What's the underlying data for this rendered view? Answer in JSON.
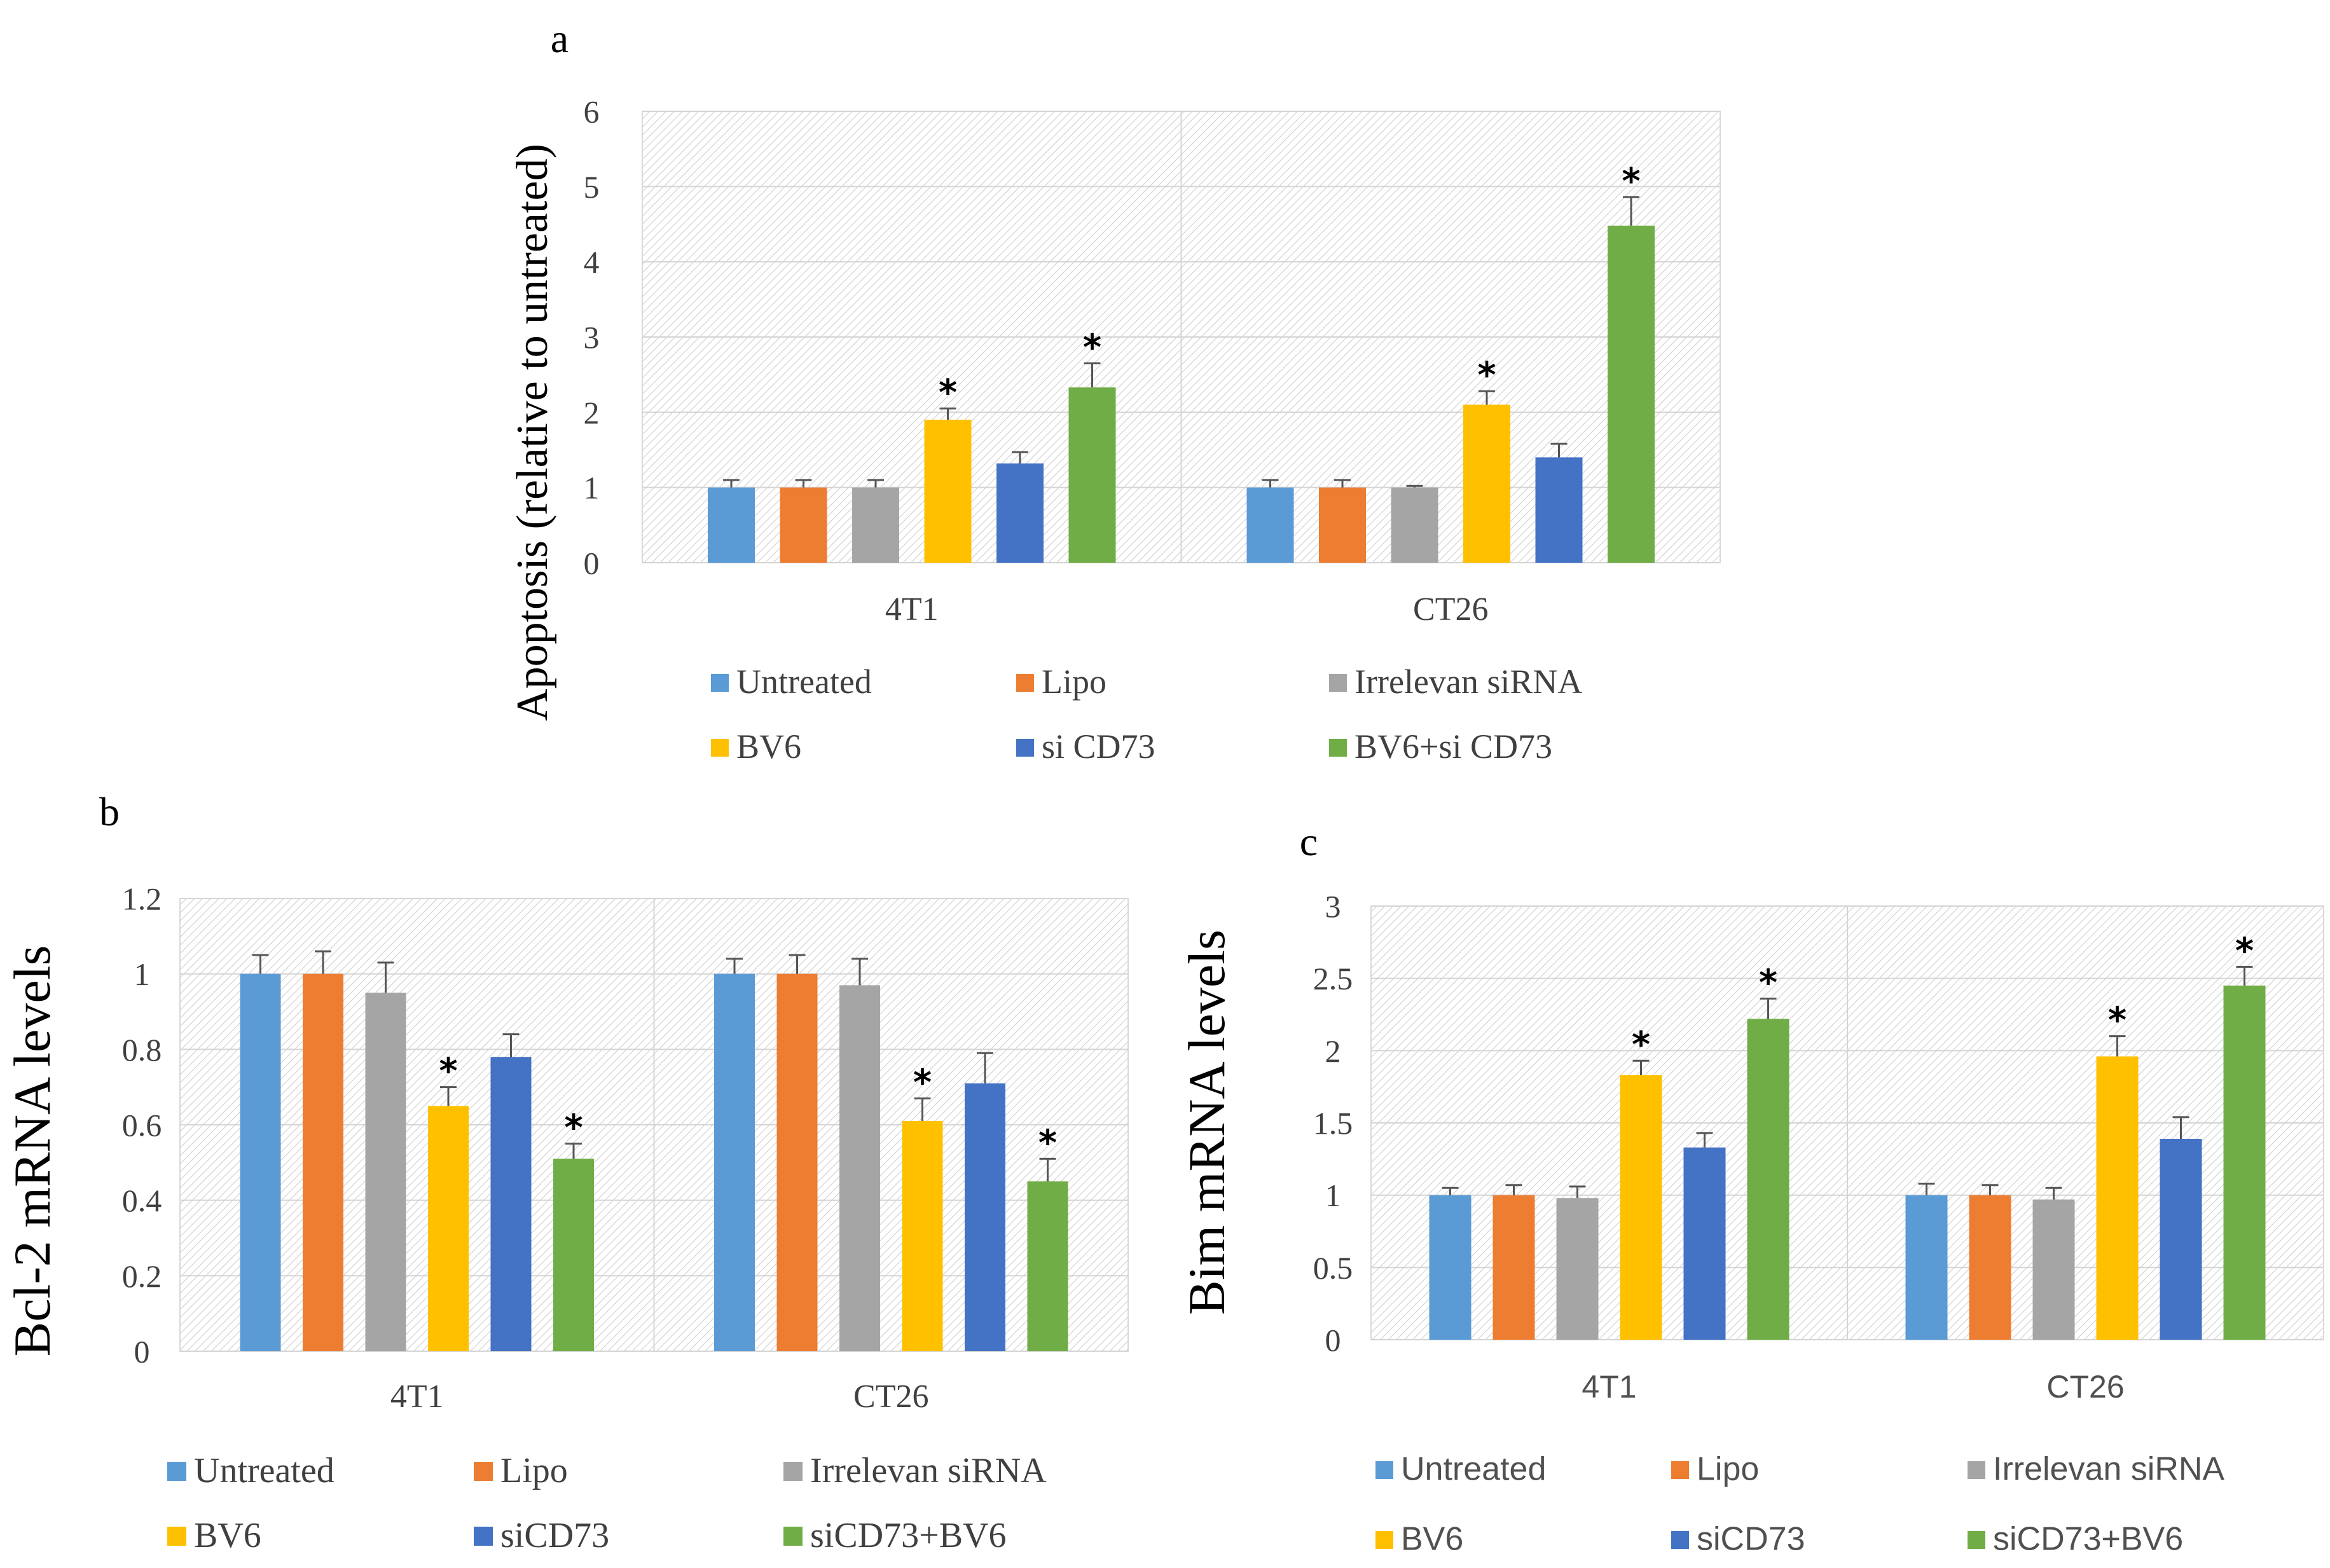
{
  "chart_data": [
    {
      "panel": "a",
      "type": "bar",
      "title": "",
      "xlabel": "",
      "ylabel": "Apoptosis (relative to untreated)",
      "ylim": [
        0,
        6
      ],
      "yticks": [
        "0",
        "1",
        "2",
        "3",
        "4",
        "5",
        "6"
      ],
      "categories": [
        "4T1",
        "CT26"
      ],
      "legend_position": "bottom",
      "series": [
        {
          "name": "Untreated",
          "color": "#5B9BD5",
          "values": [
            1.0,
            1.0
          ],
          "errors": [
            0.1,
            0.1
          ],
          "significant": [
            false,
            false
          ]
        },
        {
          "name": "Lipo",
          "color": "#ED7D31",
          "values": [
            1.0,
            1.0
          ],
          "errors": [
            0.1,
            0.1
          ],
          "significant": [
            false,
            false
          ]
        },
        {
          "name": "Irrelevan siRNA",
          "color": "#A5A5A5",
          "values": [
            1.0,
            1.0
          ],
          "errors": [
            0.1,
            0.02
          ],
          "significant": [
            false,
            false
          ]
        },
        {
          "name": "BV6",
          "color": "#FFC000",
          "values": [
            1.9,
            2.1
          ],
          "errors": [
            0.15,
            0.18
          ],
          "significant": [
            true,
            true
          ]
        },
        {
          "name": "si CD73",
          "color": "#4472C4",
          "values": [
            1.32,
            1.4
          ],
          "errors": [
            0.15,
            0.18
          ],
          "significant": [
            false,
            false
          ]
        },
        {
          "name": "BV6+si CD73",
          "color": "#70AD47",
          "values": [
            2.33,
            4.48
          ],
          "errors": [
            0.32,
            0.38
          ],
          "significant": [
            true,
            true
          ]
        }
      ],
      "significance_marker": "*"
    },
    {
      "panel": "b",
      "type": "bar",
      "title": "",
      "xlabel": "",
      "ylabel": "Bcl-2 mRNA levels",
      "ylim": [
        0,
        1.2
      ],
      "yticks": [
        "0",
        "0.2",
        "0.4",
        "0.6",
        "0.8",
        "1",
        "1.2"
      ],
      "categories": [
        "4T1",
        "CT26"
      ],
      "legend_position": "bottom",
      "series": [
        {
          "name": "Untreated",
          "color": "#5B9BD5",
          "values": [
            1.0,
            1.0
          ],
          "errors": [
            0.05,
            0.04
          ],
          "significant": [
            false,
            false
          ]
        },
        {
          "name": "Lipo",
          "color": "#ED7D31",
          "values": [
            1.0,
            1.0
          ],
          "errors": [
            0.06,
            0.05
          ],
          "significant": [
            false,
            false
          ]
        },
        {
          "name": "Irrelevan siRNA",
          "color": "#A5A5A5",
          "values": [
            0.95,
            0.97
          ],
          "errors": [
            0.08,
            0.07
          ],
          "significant": [
            false,
            false
          ]
        },
        {
          "name": "BV6",
          "color": "#FFC000",
          "values": [
            0.65,
            0.61
          ],
          "errors": [
            0.05,
            0.06
          ],
          "significant": [
            true,
            true
          ]
        },
        {
          "name": "siCD73",
          "color": "#4472C4",
          "values": [
            0.78,
            0.71
          ],
          "errors": [
            0.06,
            0.08
          ],
          "significant": [
            false,
            false
          ]
        },
        {
          "name": "siCD73+BV6",
          "color": "#70AD47",
          "values": [
            0.51,
            0.45
          ],
          "errors": [
            0.04,
            0.06
          ],
          "significant": [
            true,
            true
          ]
        }
      ],
      "significance_marker": "*"
    },
    {
      "panel": "c",
      "type": "bar",
      "title": "",
      "xlabel": "",
      "ylabel": "Bim mRNA levels",
      "ylim": [
        0,
        3
      ],
      "yticks": [
        "0",
        "0.5",
        "1",
        "1.5",
        "2",
        "2.5",
        "3"
      ],
      "categories": [
        "4T1",
        "CT26"
      ],
      "legend_position": "bottom",
      "series": [
        {
          "name": "Untreated",
          "color": "#5B9BD5",
          "values": [
            1.0,
            1.0
          ],
          "errors": [
            0.05,
            0.08
          ],
          "significant": [
            false,
            false
          ]
        },
        {
          "name": "Lipo",
          "color": "#ED7D31",
          "values": [
            1.0,
            1.0
          ],
          "errors": [
            0.07,
            0.07
          ],
          "significant": [
            false,
            false
          ]
        },
        {
          "name": "Irrelevan siRNA",
          "color": "#A5A5A5",
          "values": [
            0.98,
            0.97
          ],
          "errors": [
            0.08,
            0.08
          ],
          "significant": [
            false,
            false
          ]
        },
        {
          "name": "BV6",
          "color": "#FFC000",
          "values": [
            1.83,
            1.96
          ],
          "errors": [
            0.1,
            0.14
          ],
          "significant": [
            true,
            true
          ]
        },
        {
          "name": "siCD73",
          "color": "#4472C4",
          "values": [
            1.33,
            1.39
          ],
          "errors": [
            0.1,
            0.15
          ],
          "significant": [
            false,
            false
          ]
        },
        {
          "name": "siCD73+BV6",
          "color": "#70AD47",
          "values": [
            2.22,
            2.45
          ],
          "errors": [
            0.14,
            0.13
          ],
          "significant": [
            true,
            true
          ]
        }
      ],
      "significance_marker": "*"
    }
  ]
}
